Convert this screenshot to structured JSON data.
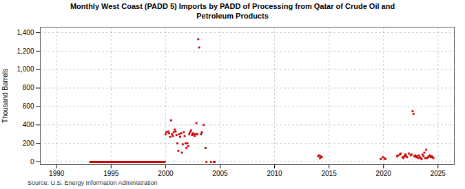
{
  "chart_data": {
    "type": "scatter",
    "title": "Monthly West Coast (PADD 5) Imports by PADD of Processing from Qatar of Crude Oil and\nPetroleum Products",
    "ylabel": "Thousand Barrels",
    "annotations": [
      "Source: U.S. Energy Information Administration"
    ],
    "color": "#cc0000",
    "marker": "square",
    "grid": true,
    "xlim": [
      1988.5,
      2026.5
    ],
    "xticks": [
      1990,
      1995,
      2000,
      2005,
      2010,
      2015,
      2020,
      2025
    ],
    "ylim": [
      -30,
      1460
    ],
    "yticks": [
      0,
      200,
      400,
      600,
      800,
      {
        "value": 1000,
        "label": "1,000"
      },
      {
        "value": 1200,
        "label": "1,200"
      },
      {
        "value": 1400,
        "label": "1,400"
      }
    ],
    "x": [
      1993.08,
      1993.17,
      1993.25,
      1993.33,
      1993.42,
      1993.5,
      1993.58,
      1993.67,
      1993.75,
      1993.83,
      1993.92,
      1994.0,
      1994.08,
      1994.17,
      1994.25,
      1994.33,
      1994.42,
      1994.5,
      1994.58,
      1994.67,
      1994.75,
      1994.83,
      1994.92,
      1995.0,
      1995.08,
      1995.17,
      1995.25,
      1995.33,
      1995.42,
      1995.5,
      1995.58,
      1995.67,
      1995.75,
      1995.83,
      1995.92,
      1996.0,
      1996.08,
      1996.17,
      1996.25,
      1996.33,
      1996.42,
      1996.5,
      1996.58,
      1996.67,
      1996.75,
      1996.83,
      1996.92,
      1997.0,
      1997.08,
      1997.17,
      1997.25,
      1997.33,
      1997.42,
      1997.5,
      1997.58,
      1997.67,
      1997.75,
      1997.83,
      1997.92,
      1998.0,
      1998.08,
      1998.17,
      1998.25,
      1998.33,
      1998.42,
      1998.5,
      1998.58,
      1998.67,
      1998.75,
      1998.83,
      1998.92,
      1999.0,
      1999.08,
      1999.17,
      1999.25,
      1999.33,
      1999.42,
      1999.5,
      1999.58,
      1999.67,
      1999.75,
      1999.83,
      1999.92,
      2000.0,
      2000.08,
      2000.25,
      2000.33,
      2000.42,
      2000.5,
      2000.58,
      2000.67,
      2000.75,
      2000.83,
      2000.92,
      2001.0,
      2001.08,
      2001.17,
      2001.25,
      2001.33,
      2001.42,
      2001.5,
      2001.58,
      2001.67,
      2001.75,
      2001.83,
      2001.92,
      2002.0,
      2002.08,
      2002.17,
      2002.25,
      2002.33,
      2002.42,
      2002.5,
      2002.58,
      2002.67,
      2002.75,
      2002.83,
      2002.92,
      2003.0,
      2003.08,
      2003.25,
      2003.33,
      2003.5,
      2003.67,
      2003.75,
      2004.17,
      2004.42,
      2004.5,
      2014.0,
      2014.08,
      2014.17,
      2014.25,
      2014.33,
      2019.75,
      2019.92,
      2020.08,
      2020.17,
      2021.25,
      2021.33,
      2021.5,
      2021.58,
      2021.75,
      2021.83,
      2021.92,
      2022.0,
      2022.08,
      2022.17,
      2022.33,
      2022.5,
      2022.58,
      2022.67,
      2022.75,
      2022.83,
      2022.92,
      2023.0,
      2023.08,
      2023.17,
      2023.25,
      2023.33,
      2023.42,
      2023.5,
      2023.58,
      2023.67,
      2023.75,
      2023.83,
      2023.92,
      2024.0,
      2024.08,
      2024.17,
      2024.25,
      2024.33,
      2024.42,
      2024.5,
      2024.58
    ],
    "values": [
      0,
      0,
      0,
      0,
      0,
      0,
      0,
      0,
      0,
      0,
      0,
      0,
      0,
      0,
      0,
      0,
      0,
      0,
      0,
      0,
      0,
      0,
      0,
      0,
      0,
      0,
      0,
      0,
      0,
      0,
      0,
      0,
      0,
      0,
      0,
      0,
      0,
      0,
      0,
      0,
      0,
      0,
      0,
      0,
      0,
      0,
      0,
      0,
      0,
      0,
      0,
      0,
      0,
      0,
      0,
      0,
      0,
      0,
      0,
      0,
      0,
      0,
      0,
      0,
      0,
      0,
      0,
      0,
      0,
      0,
      0,
      0,
      0,
      0,
      0,
      0,
      0,
      0,
      0,
      0,
      0,
      0,
      0,
      300,
      320,
      330,
      310,
      270,
      450,
      300,
      280,
      320,
      350,
      330,
      290,
      200,
      120,
      300,
      270,
      310,
      100,
      190,
      320,
      280,
      200,
      150,
      200,
      170,
      300,
      320,
      340,
      290,
      310,
      300,
      280,
      300,
      420,
      300,
      1330,
      1240,
      300,
      320,
      400,
      150,
      0,
      0,
      0,
      0,
      60,
      70,
      40,
      60,
      50,
      30,
      50,
      40,
      30,
      60,
      70,
      80,
      90,
      50,
      40,
      60,
      80,
      60,
      50,
      90,
      70,
      80,
      550,
      520,
      60,
      70,
      50,
      60,
      40,
      70,
      50,
      40,
      30,
      80,
      60,
      100,
      40,
      130,
      40,
      50,
      60,
      70,
      50,
      60,
      50,
      40
    ]
  }
}
